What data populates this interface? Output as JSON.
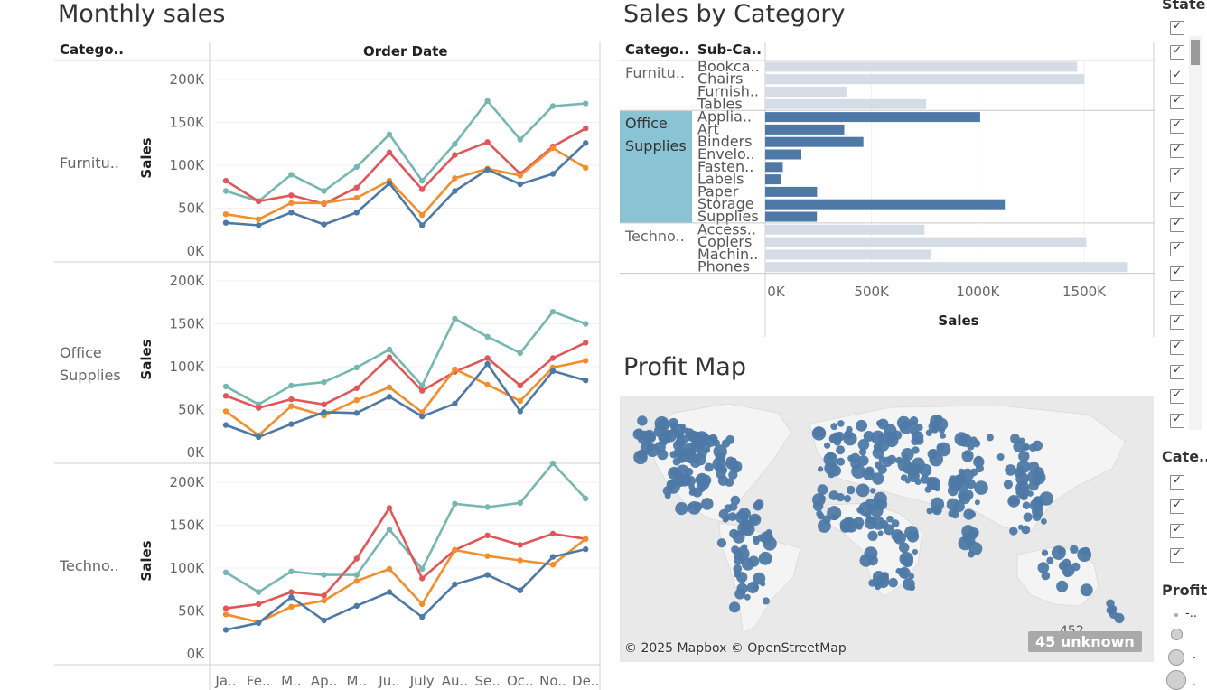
{
  "monthly": {
    "title": "Monthly sales",
    "category_header": "Catego..",
    "date_header": "Order Date",
    "axis_label": "Sales",
    "y_ticks": [
      "200K",
      "150K",
      "100K",
      "50K",
      "0K"
    ],
    "months": [
      "Ja..",
      "Fe..",
      "M..",
      "Ap..",
      "M..",
      "Ju..",
      "July",
      "Au..",
      "Se..",
      "Oc..",
      "No..",
      "De.."
    ]
  },
  "category": {
    "title": "Sales by Category",
    "category_header": "Catego..",
    "subcategory_header": "Sub-Ca..",
    "axis_label": "Sales",
    "x_ticks": [
      "0K",
      "500K",
      "1000K",
      "1500K"
    ]
  },
  "map": {
    "title": "Profit Map",
    "copyright": "© 2025 Mapbox © OpenStreetMap",
    "unknown_badge": "45 unknown",
    "label_452": "452"
  },
  "filters": {
    "state_title": "State",
    "category_title": "Cate..",
    "profit_title": "Profit",
    "profit_items": [
      "-..",
      "",
      ".",
      "."
    ]
  },
  "chart_data": [
    {
      "type": "line",
      "title": "Monthly sales",
      "ylabel": "Sales",
      "ylim": [
        0,
        230000
      ],
      "x": [
        "Ja..",
        "Fe..",
        "M..",
        "Ap..",
        "M..",
        "Ju..",
        "July",
        "Au..",
        "Se..",
        "Oc..",
        "No..",
        "De.."
      ],
      "panels": [
        {
          "category": "Furnitu..",
          "series": [
            {
              "color": "#76b7b2",
              "values": [
                70000,
                58000,
                89000,
                70000,
                98000,
                136000,
                82000,
                125000,
                175000,
                130000,
                169000,
                172000
              ]
            },
            {
              "color": "#e15759",
              "values": [
                82000,
                58000,
                65000,
                55000,
                74000,
                115000,
                72000,
                112000,
                127000,
                90000,
                122000,
                143000
              ]
            },
            {
              "color": "#f28e2b",
              "values": [
                43000,
                37000,
                56000,
                56000,
                62000,
                82000,
                42000,
                85000,
                96000,
                88000,
                120000,
                97000
              ]
            },
            {
              "color": "#4e79a7",
              "values": [
                33000,
                30000,
                45000,
                31000,
                45000,
                79000,
                30000,
                70000,
                95000,
                78000,
                90000,
                126000
              ]
            }
          ]
        },
        {
          "category": "Office Supplies",
          "series": [
            {
              "color": "#76b7b2",
              "values": [
                77000,
                56000,
                78000,
                82000,
                99000,
                120000,
                78000,
                156000,
                135000,
                116000,
                164000,
                150000
              ]
            },
            {
              "color": "#e15759",
              "values": [
                66000,
                52000,
                62000,
                56000,
                75000,
                111000,
                72000,
                94000,
                110000,
                78000,
                110000,
                128000
              ]
            },
            {
              "color": "#f28e2b",
              "values": [
                48000,
                20000,
                54000,
                43000,
                61000,
                76000,
                47000,
                97000,
                79000,
                60000,
                99000,
                107000
              ]
            },
            {
              "color": "#4e79a7",
              "values": [
                32000,
                18000,
                33000,
                47000,
                46000,
                65000,
                42000,
                57000,
                103000,
                48000,
                95000,
                84000
              ]
            }
          ]
        },
        {
          "category": "Techno..",
          "series": [
            {
              "color": "#76b7b2",
              "values": [
                95000,
                72000,
                96000,
                92000,
                92000,
                145000,
                99000,
                175000,
                171000,
                176000,
                222000,
                181000
              ]
            },
            {
              "color": "#e15759",
              "values": [
                53000,
                58000,
                72000,
                68000,
                111000,
                170000,
                88000,
                121000,
                138000,
                127000,
                140000,
                134000
              ]
            },
            {
              "color": "#f28e2b",
              "values": [
                46000,
                37000,
                55000,
                62000,
                85000,
                99000,
                58000,
                121000,
                114000,
                109000,
                104000,
                134000
              ]
            },
            {
              "color": "#4e79a7",
              "values": [
                28000,
                36000,
                66000,
                39000,
                56000,
                72000,
                43000,
                81000,
                92000,
                74000,
                113000,
                122000
              ]
            }
          ]
        }
      ]
    },
    {
      "type": "bar",
      "title": "Sales by Category",
      "xlabel": "Sales",
      "xlim": [
        0,
        1800000
      ],
      "groups": [
        {
          "category": "Furnitu..",
          "highlighted": false,
          "color": "#d4dde6",
          "items": [
            {
              "name": "Bookca..",
              "value": 1467000
            },
            {
              "name": "Chairs",
              "value": 1501000
            },
            {
              "name": "Furnish..",
              "value": 385000
            },
            {
              "name": "Tables",
              "value": 757000
            }
          ]
        },
        {
          "category": "Office Supplies",
          "highlighted": true,
          "color": "#4e79a7",
          "items": [
            {
              "name": "Applia..",
              "value": 1011000
            },
            {
              "name": "Art",
              "value": 372000
            },
            {
              "name": "Binders",
              "value": 462000
            },
            {
              "name": "Envelo..",
              "value": 170000
            },
            {
              "name": "Fasten..",
              "value": 83000
            },
            {
              "name": "Labels",
              "value": 73000
            },
            {
              "name": "Paper",
              "value": 244000
            },
            {
              "name": "Storage",
              "value": 1127000
            },
            {
              "name": "Supplies",
              "value": 243000
            }
          ]
        },
        {
          "category": "Techno..",
          "highlighted": false,
          "color": "#d4dde6",
          "items": [
            {
              "name": "Access..",
              "value": 749000
            },
            {
              "name": "Copiers",
              "value": 1510000
            },
            {
              "name": "Machin..",
              "value": 779000
            },
            {
              "name": "Phones",
              "value": 1706000
            }
          ]
        }
      ]
    }
  ]
}
